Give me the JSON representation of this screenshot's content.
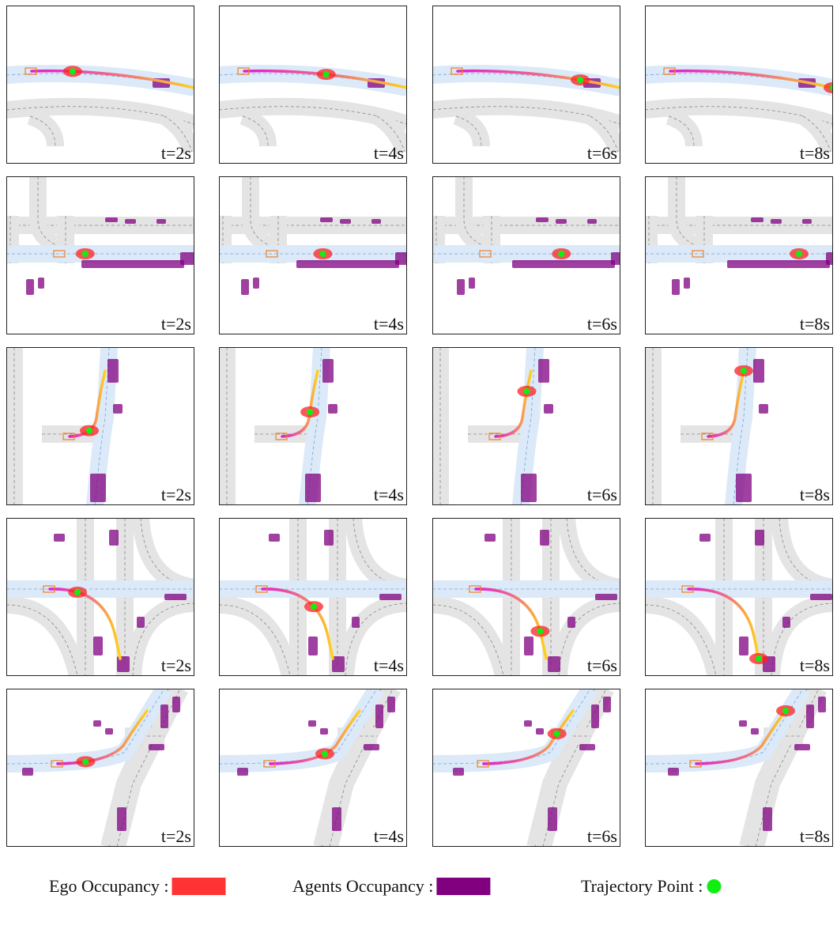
{
  "panels": [
    [
      "t=2s",
      "t=4s",
      "t=6s",
      "t=8s"
    ],
    [
      "t=2s",
      "t=4s",
      "t=6s",
      "t=8s"
    ],
    [
      "t=2s",
      "t=4s",
      "t=6s",
      "t=8s"
    ],
    [
      "t=2s",
      "t=4s",
      "t=6s",
      "t=8s"
    ],
    [
      "t=2s",
      "t=4s",
      "t=6s",
      "t=8s"
    ]
  ],
  "legend": [
    {
      "label": "Ego Occupancy :",
      "color": "#ff3333",
      "shape": "rect"
    },
    {
      "label": "Agents Occupancy :",
      "color": "#800080",
      "shape": "rect"
    },
    {
      "label": "Trajectory Point :",
      "color": "#11ee11",
      "shape": "circle"
    }
  ]
}
